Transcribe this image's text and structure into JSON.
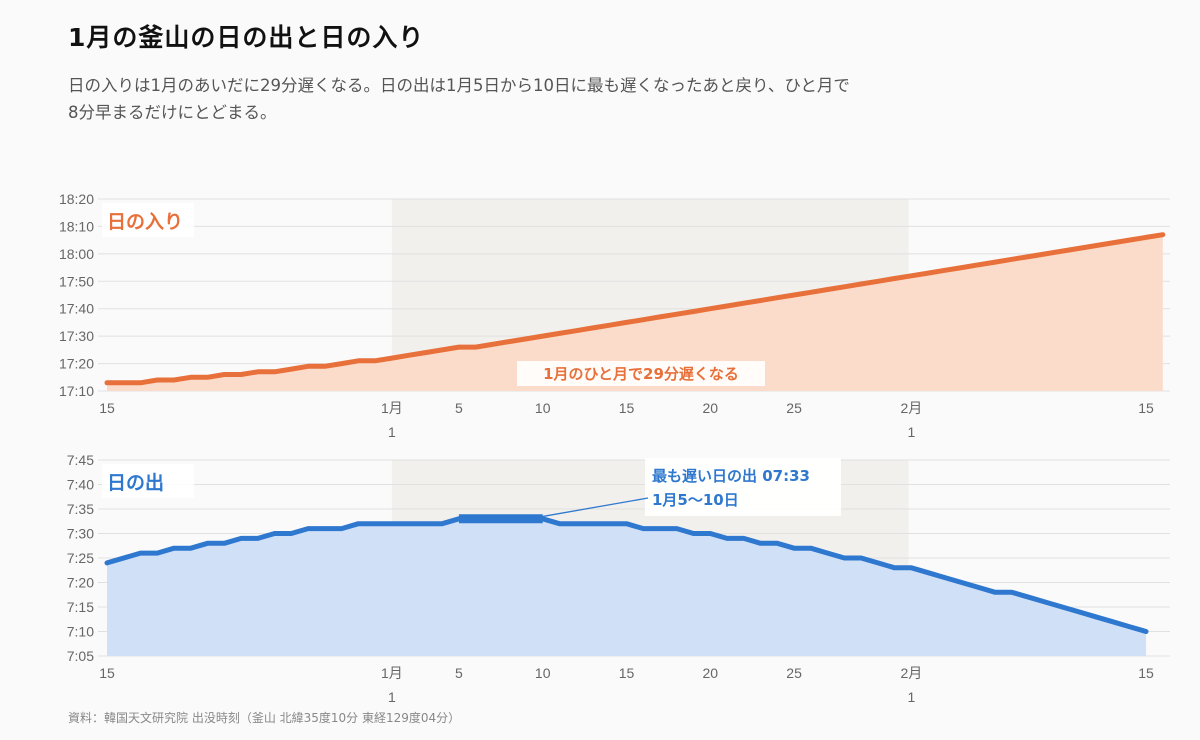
{
  "header": {
    "title": "1月の釜山の日の出と日の入り",
    "subtitle": "日の入りは1月のあいだに29分遅くなる。日の出は1月5日から10日に最も遅くなったあと戻り、ひと月で8分早まるだけにとどまる。"
  },
  "source": "資料：韓国天文研究院 出没時刻（釜山 北緯35度10分 東経129度04分）",
  "colors": {
    "sunset_line": "#e8703a",
    "sunset_fill": "#fbdccb",
    "sunrise_line": "#2f78cf",
    "sunrise_fill": "#d0e0f6",
    "january_band": "#f1f0ec",
    "grid": "#e1e1e1"
  },
  "chart_data": [
    {
      "type": "area",
      "series_label": "日の入り",
      "annotation": "1月のひと月で29分遅くなる",
      "x_range": [
        "2019-12-15",
        "2020-02-15"
      ],
      "highlight_band": [
        "2020-01-01",
        "2020-01-31"
      ],
      "ylim": [
        "17:10",
        "18:20"
      ],
      "y_ticks": [
        "17:10",
        "17:20",
        "17:30",
        "17:40",
        "17:50",
        "18:00",
        "18:10",
        "18:20"
      ],
      "x_ticks": [
        {
          "date": "2019-12-15",
          "label": "15"
        },
        {
          "date": "2020-01-01",
          "label": "1月\n1"
        },
        {
          "date": "2020-01-05",
          "label": "5"
        },
        {
          "date": "2020-01-10",
          "label": "10"
        },
        {
          "date": "2020-01-15",
          "label": "15"
        },
        {
          "date": "2020-01-20",
          "label": "20"
        },
        {
          "date": "2020-01-25",
          "label": "25"
        },
        {
          "date": "2020-02-01",
          "label": "2月\n1"
        },
        {
          "date": "2020-02-15",
          "label": "15"
        }
      ],
      "points": [
        [
          "2019-12-15",
          "17:13"
        ],
        [
          "2019-12-16",
          "17:13"
        ],
        [
          "2019-12-17",
          "17:13"
        ],
        [
          "2019-12-18",
          "17:14"
        ],
        [
          "2019-12-19",
          "17:14"
        ],
        [
          "2019-12-20",
          "17:15"
        ],
        [
          "2019-12-21",
          "17:15"
        ],
        [
          "2019-12-22",
          "17:16"
        ],
        [
          "2019-12-23",
          "17:16"
        ],
        [
          "2019-12-24",
          "17:17"
        ],
        [
          "2019-12-25",
          "17:17"
        ],
        [
          "2019-12-26",
          "17:18"
        ],
        [
          "2019-12-27",
          "17:19"
        ],
        [
          "2019-12-28",
          "17:19"
        ],
        [
          "2019-12-29",
          "17:20"
        ],
        [
          "2019-12-30",
          "17:21"
        ],
        [
          "2019-12-31",
          "17:21"
        ],
        [
          "2020-01-01",
          "17:22"
        ],
        [
          "2020-01-02",
          "17:23"
        ],
        [
          "2020-01-03",
          "17:24"
        ],
        [
          "2020-01-04",
          "17:25"
        ],
        [
          "2020-01-05",
          "17:26"
        ],
        [
          "2020-01-06",
          "17:26"
        ],
        [
          "2020-01-07",
          "17:27"
        ],
        [
          "2020-01-08",
          "17:28"
        ],
        [
          "2020-01-09",
          "17:29"
        ],
        [
          "2020-01-10",
          "17:30"
        ],
        [
          "2020-01-11",
          "17:31"
        ],
        [
          "2020-01-12",
          "17:32"
        ],
        [
          "2020-01-13",
          "17:33"
        ],
        [
          "2020-01-14",
          "17:34"
        ],
        [
          "2020-01-15",
          "17:35"
        ],
        [
          "2020-01-16",
          "17:36"
        ],
        [
          "2020-01-17",
          "17:37"
        ],
        [
          "2020-01-18",
          "17:38"
        ],
        [
          "2020-01-19",
          "17:39"
        ],
        [
          "2020-01-20",
          "17:40"
        ],
        [
          "2020-01-21",
          "17:41"
        ],
        [
          "2020-01-22",
          "17:42"
        ],
        [
          "2020-01-23",
          "17:43"
        ],
        [
          "2020-01-24",
          "17:44"
        ],
        [
          "2020-01-25",
          "17:45"
        ],
        [
          "2020-01-26",
          "17:46"
        ],
        [
          "2020-01-27",
          "17:47"
        ],
        [
          "2020-01-28",
          "17:48"
        ],
        [
          "2020-01-29",
          "17:49"
        ],
        [
          "2020-01-30",
          "17:50"
        ],
        [
          "2020-01-31",
          "17:51"
        ],
        [
          "2020-02-01",
          "17:52"
        ],
        [
          "2020-02-02",
          "17:53"
        ],
        [
          "2020-02-03",
          "17:54"
        ],
        [
          "2020-02-04",
          "17:55"
        ],
        [
          "2020-02-05",
          "17:56"
        ],
        [
          "2020-02-06",
          "17:57"
        ],
        [
          "2020-02-07",
          "17:58"
        ],
        [
          "2020-02-08",
          "17:59"
        ],
        [
          "2020-02-09",
          "18:00"
        ],
        [
          "2020-02-10",
          "18:01"
        ],
        [
          "2020-02-11",
          "18:02"
        ],
        [
          "2020-02-12",
          "18:03"
        ],
        [
          "2020-02-13",
          "18:04"
        ],
        [
          "2020-02-14",
          "18:05"
        ],
        [
          "2020-02-15",
          "18:06"
        ],
        [
          "2020-02-16",
          "18:07"
        ]
      ]
    },
    {
      "type": "area",
      "series_label": "日の出",
      "annotation_lines": [
        "最も遅い日の出 07:33",
        "1月5〜10日"
      ],
      "latest_range": [
        "2020-01-05",
        "2020-01-10"
      ],
      "x_range": [
        "2019-12-15",
        "2020-02-15"
      ],
      "highlight_band": [
        "2020-01-01",
        "2020-01-31"
      ],
      "ylim": [
        "7:05",
        "7:45"
      ],
      "y_ticks": [
        "7:05",
        "7:10",
        "7:15",
        "7:20",
        "7:25",
        "7:30",
        "7:35",
        "7:40",
        "7:45"
      ],
      "x_ticks": [
        {
          "date": "2019-12-15",
          "label": "15"
        },
        {
          "date": "2020-01-01",
          "label": "1月\n1"
        },
        {
          "date": "2020-01-05",
          "label": "5"
        },
        {
          "date": "2020-01-10",
          "label": "10"
        },
        {
          "date": "2020-01-15",
          "label": "15"
        },
        {
          "date": "2020-01-20",
          "label": "20"
        },
        {
          "date": "2020-01-25",
          "label": "25"
        },
        {
          "date": "2020-02-01",
          "label": "2月\n1"
        },
        {
          "date": "2020-02-15",
          "label": "15"
        }
      ],
      "points": [
        [
          "2019-12-15",
          "7:24"
        ],
        [
          "2019-12-17",
          "7:26"
        ],
        [
          "2019-12-18",
          "7:26"
        ],
        [
          "2019-12-19",
          "7:27"
        ],
        [
          "2019-12-20",
          "7:27"
        ],
        [
          "2019-12-21",
          "7:28"
        ],
        [
          "2019-12-22",
          "7:28"
        ],
        [
          "2019-12-23",
          "7:29"
        ],
        [
          "2019-12-24",
          "7:29"
        ],
        [
          "2019-12-25",
          "7:30"
        ],
        [
          "2019-12-26",
          "7:30"
        ],
        [
          "2019-12-27",
          "7:31"
        ],
        [
          "2019-12-28",
          "7:31"
        ],
        [
          "2019-12-29",
          "7:31"
        ],
        [
          "2019-12-30",
          "7:32"
        ],
        [
          "2019-12-31",
          "7:32"
        ],
        [
          "2020-01-01",
          "7:32"
        ],
        [
          "2020-01-02",
          "7:32"
        ],
        [
          "2020-01-03",
          "7:32"
        ],
        [
          "2020-01-04",
          "7:32"
        ],
        [
          "2020-01-05",
          "7:33"
        ],
        [
          "2020-01-06",
          "7:33"
        ],
        [
          "2020-01-07",
          "7:33"
        ],
        [
          "2020-01-08",
          "7:33"
        ],
        [
          "2020-01-09",
          "7:33"
        ],
        [
          "2020-01-10",
          "7:33"
        ],
        [
          "2020-01-11",
          "7:32"
        ],
        [
          "2020-01-12",
          "7:32"
        ],
        [
          "2020-01-13",
          "7:32"
        ],
        [
          "2020-01-14",
          "7:32"
        ],
        [
          "2020-01-15",
          "7:32"
        ],
        [
          "2020-01-16",
          "7:31"
        ],
        [
          "2020-01-17",
          "7:31"
        ],
        [
          "2020-01-18",
          "7:31"
        ],
        [
          "2020-01-19",
          "7:30"
        ],
        [
          "2020-01-20",
          "7:30"
        ],
        [
          "2020-01-21",
          "7:29"
        ],
        [
          "2020-01-22",
          "7:29"
        ],
        [
          "2020-01-23",
          "7:28"
        ],
        [
          "2020-01-24",
          "7:28"
        ],
        [
          "2020-01-25",
          "7:27"
        ],
        [
          "2020-01-26",
          "7:27"
        ],
        [
          "2020-01-27",
          "7:26"
        ],
        [
          "2020-01-28",
          "7:25"
        ],
        [
          "2020-01-29",
          "7:25"
        ],
        [
          "2020-01-30",
          "7:24"
        ],
        [
          "2020-01-31",
          "7:23"
        ],
        [
          "2020-02-01",
          "7:23"
        ],
        [
          "2020-02-02",
          "7:22"
        ],
        [
          "2020-02-03",
          "7:21"
        ],
        [
          "2020-02-04",
          "7:20"
        ],
        [
          "2020-02-05",
          "7:19"
        ],
        [
          "2020-02-06",
          "7:18"
        ],
        [
          "2020-02-07",
          "7:18"
        ],
        [
          "2020-02-08",
          "7:17"
        ],
        [
          "2020-02-09",
          "7:16"
        ],
        [
          "2020-02-10",
          "7:15"
        ],
        [
          "2020-02-11",
          "7:14"
        ],
        [
          "2020-02-12",
          "7:13"
        ],
        [
          "2020-02-13",
          "7:12"
        ],
        [
          "2020-02-14",
          "7:11"
        ],
        [
          "2020-02-15",
          "7:10"
        ]
      ]
    }
  ]
}
